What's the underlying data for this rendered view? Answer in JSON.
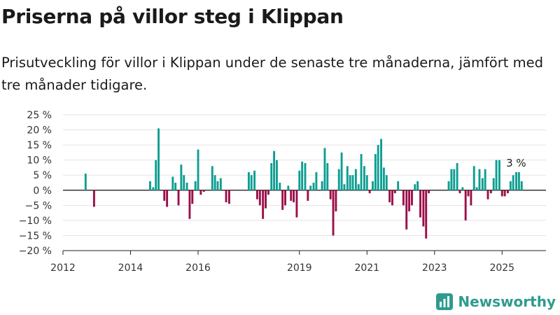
{
  "title": "Priserna på villor steg i Klippan",
  "subtitle": "Prisutveckling för villor i Klippan under de senaste tre månaderna, jämfört med tre månader tidigare.",
  "brand": {
    "name": "Newsworthy",
    "color": "#2f9b8e"
  },
  "colors": {
    "positive": "#0d9e92",
    "negative": "#9b0f49"
  },
  "chart_data": {
    "type": "bar",
    "ylabel": "",
    "xlabel": "",
    "ylim": [
      -20,
      25
    ],
    "yticks": [
      "25 %",
      "20 %",
      "15 %",
      "10 %",
      "5 %",
      "0 %",
      "−5 %",
      "−10 %",
      "−15 %",
      "−20 %"
    ],
    "ytick_values": [
      25,
      20,
      15,
      10,
      5,
      0,
      -5,
      -10,
      -15,
      -20
    ],
    "xticks": [
      {
        "label": "2012",
        "x": 2012.0
      },
      {
        "label": "2014",
        "x": 2014.0
      },
      {
        "label": "2016",
        "x": 2016.0
      },
      {
        "label": "2019",
        "x": 2019.0
      },
      {
        "label": "2021",
        "x": 2021.0
      },
      {
        "label": "2023",
        "x": 2023.0
      },
      {
        "label": "2025",
        "x": 2025.0
      }
    ],
    "xlim": [
      2012.0,
      2026.3
    ],
    "grid": true,
    "annotation": {
      "text": "3 %",
      "x": 2025.5
    },
    "series": [
      {
        "x": 2012.67,
        "y": 5.5
      },
      {
        "x": 2012.92,
        "y": -5.5
      },
      {
        "x": 2014.58,
        "y": 3.0
      },
      {
        "x": 2014.67,
        "y": 1.0
      },
      {
        "x": 2014.75,
        "y": 10.0
      },
      {
        "x": 2014.83,
        "y": 20.5
      },
      {
        "x": 2015.0,
        "y": -3.5
      },
      {
        "x": 2015.08,
        "y": -5.5
      },
      {
        "x": 2015.25,
        "y": 4.5
      },
      {
        "x": 2015.33,
        "y": 2.5
      },
      {
        "x": 2015.42,
        "y": -5.0
      },
      {
        "x": 2015.5,
        "y": 8.5
      },
      {
        "x": 2015.58,
        "y": 5.0
      },
      {
        "x": 2015.67,
        "y": 2.5
      },
      {
        "x": 2015.75,
        "y": -9.5
      },
      {
        "x": 2015.83,
        "y": -4.5
      },
      {
        "x": 2015.92,
        "y": 3.0
      },
      {
        "x": 2016.0,
        "y": 13.5
      },
      {
        "x": 2016.08,
        "y": -1.5
      },
      {
        "x": 2016.17,
        "y": -0.5
      },
      {
        "x": 2016.42,
        "y": 8.0
      },
      {
        "x": 2016.5,
        "y": 5.0
      },
      {
        "x": 2016.58,
        "y": 3.0
      },
      {
        "x": 2016.67,
        "y": 4.0
      },
      {
        "x": 2016.83,
        "y": -4.0
      },
      {
        "x": 2016.92,
        "y": -4.5
      },
      {
        "x": 2017.5,
        "y": 6.0
      },
      {
        "x": 2017.58,
        "y": 5.0
      },
      {
        "x": 2017.67,
        "y": 6.5
      },
      {
        "x": 2017.75,
        "y": -3.0
      },
      {
        "x": 2017.83,
        "y": -5.0
      },
      {
        "x": 2017.92,
        "y": -9.5
      },
      {
        "x": 2018.0,
        "y": -6.0
      },
      {
        "x": 2018.08,
        "y": -1.5
      },
      {
        "x": 2018.17,
        "y": 9.0
      },
      {
        "x": 2018.25,
        "y": 13.0
      },
      {
        "x": 2018.33,
        "y": 10.0
      },
      {
        "x": 2018.42,
        "y": 2.5
      },
      {
        "x": 2018.5,
        "y": -6.5
      },
      {
        "x": 2018.58,
        "y": -5.0
      },
      {
        "x": 2018.67,
        "y": 1.5
      },
      {
        "x": 2018.75,
        "y": -3.5
      },
      {
        "x": 2018.83,
        "y": -4.0
      },
      {
        "x": 2018.92,
        "y": -9.0
      },
      {
        "x": 2019.0,
        "y": 6.5
      },
      {
        "x": 2019.08,
        "y": 9.5
      },
      {
        "x": 2019.17,
        "y": 9.0
      },
      {
        "x": 2019.25,
        "y": -3.5
      },
      {
        "x": 2019.33,
        "y": 1.5
      },
      {
        "x": 2019.42,
        "y": 2.5
      },
      {
        "x": 2019.5,
        "y": 6.0
      },
      {
        "x": 2019.67,
        "y": 3.0
      },
      {
        "x": 2019.75,
        "y": 14.0
      },
      {
        "x": 2019.83,
        "y": 9.0
      },
      {
        "x": 2019.92,
        "y": -3.0
      },
      {
        "x": 2020.0,
        "y": -15.0
      },
      {
        "x": 2020.08,
        "y": -7.0
      },
      {
        "x": 2020.17,
        "y": 7.0
      },
      {
        "x": 2020.25,
        "y": 12.5
      },
      {
        "x": 2020.33,
        "y": 2.0
      },
      {
        "x": 2020.42,
        "y": 8.0
      },
      {
        "x": 2020.5,
        "y": 5.0
      },
      {
        "x": 2020.58,
        "y": 5.0
      },
      {
        "x": 2020.67,
        "y": 7.0
      },
      {
        "x": 2020.75,
        "y": 2.0
      },
      {
        "x": 2020.83,
        "y": 12.0
      },
      {
        "x": 2020.92,
        "y": 8.0
      },
      {
        "x": 2021.0,
        "y": 5.0
      },
      {
        "x": 2021.08,
        "y": -1.0
      },
      {
        "x": 2021.17,
        "y": 3.0
      },
      {
        "x": 2021.25,
        "y": 12.0
      },
      {
        "x": 2021.33,
        "y": 15.0
      },
      {
        "x": 2021.42,
        "y": 17.0
      },
      {
        "x": 2021.5,
        "y": 7.5
      },
      {
        "x": 2021.58,
        "y": 5.0
      },
      {
        "x": 2021.67,
        "y": -4.0
      },
      {
        "x": 2021.75,
        "y": -5.0
      },
      {
        "x": 2021.83,
        "y": -1.0
      },
      {
        "x": 2021.92,
        "y": 3.0
      },
      {
        "x": 2022.08,
        "y": -5.0
      },
      {
        "x": 2022.17,
        "y": -13.0
      },
      {
        "x": 2022.25,
        "y": -7.0
      },
      {
        "x": 2022.33,
        "y": -5.0
      },
      {
        "x": 2022.42,
        "y": 2.0
      },
      {
        "x": 2022.5,
        "y": 3.0
      },
      {
        "x": 2022.58,
        "y": -9.0
      },
      {
        "x": 2022.67,
        "y": -12.0
      },
      {
        "x": 2022.75,
        "y": -16.0
      },
      {
        "x": 2022.83,
        "y": -1.0
      },
      {
        "x": 2023.42,
        "y": 3.0
      },
      {
        "x": 2023.5,
        "y": 7.0
      },
      {
        "x": 2023.58,
        "y": 7.0
      },
      {
        "x": 2023.67,
        "y": 9.0
      },
      {
        "x": 2023.75,
        "y": -1.0
      },
      {
        "x": 2023.83,
        "y": 1.0
      },
      {
        "x": 2023.92,
        "y": -10.0
      },
      {
        "x": 2024.0,
        "y": -2.0
      },
      {
        "x": 2024.08,
        "y": -5.0
      },
      {
        "x": 2024.17,
        "y": 8.0
      },
      {
        "x": 2024.25,
        "y": 1.0
      },
      {
        "x": 2024.33,
        "y": 7.0
      },
      {
        "x": 2024.42,
        "y": 4.0
      },
      {
        "x": 2024.5,
        "y": 7.0
      },
      {
        "x": 2024.58,
        "y": -3.0
      },
      {
        "x": 2024.67,
        "y": -1.0
      },
      {
        "x": 2024.75,
        "y": 4.0
      },
      {
        "x": 2024.83,
        "y": 10.0
      },
      {
        "x": 2024.92,
        "y": 10.0
      },
      {
        "x": 2025.0,
        "y": -2.0
      },
      {
        "x": 2025.08,
        "y": -2.0
      },
      {
        "x": 2025.17,
        "y": -1.0
      },
      {
        "x": 2025.25,
        "y": 3.0
      },
      {
        "x": 2025.33,
        "y": 5.0
      },
      {
        "x": 2025.42,
        "y": 6.0
      },
      {
        "x": 2025.5,
        "y": 6.0
      },
      {
        "x": 2025.58,
        "y": 3.0
      }
    ]
  }
}
